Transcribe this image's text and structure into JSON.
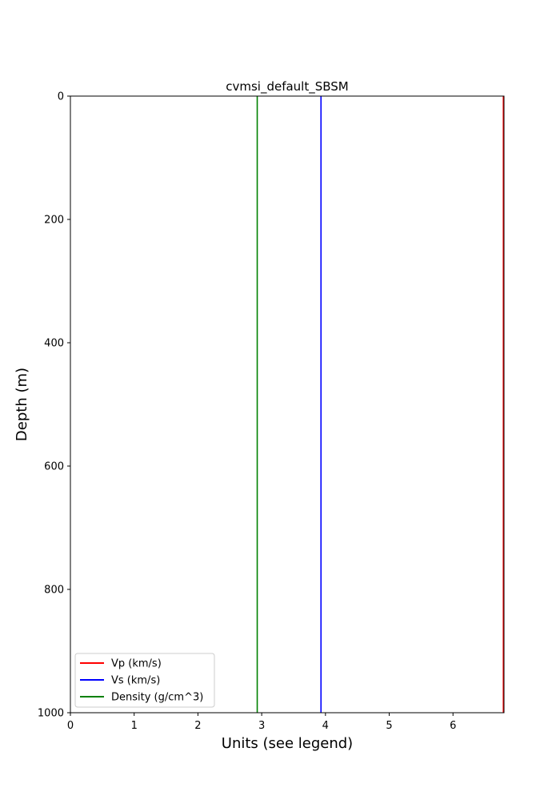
{
  "chart_data": {
    "type": "line",
    "title": "cvmsi_default_SBSM",
    "xlabel": "Units (see legend)",
    "ylabel": "Depth (m)",
    "xlim": [
      0,
      6.8
    ],
    "ylim": [
      1000,
      0
    ],
    "y_inverted": true,
    "x_ticks": [
      0,
      1,
      2,
      3,
      4,
      5,
      6
    ],
    "y_ticks": [
      0,
      200,
      400,
      600,
      800,
      1000
    ],
    "grid": false,
    "legend_position": "lower-left",
    "series": [
      {
        "name": "Vp (km/s)",
        "color": "#ff0000",
        "x": [
          6.79,
          6.79
        ],
        "y": [
          0,
          1000
        ]
      },
      {
        "name": "Vs (km/s)",
        "color": "#0000ff",
        "x": [
          3.93,
          3.93
        ],
        "y": [
          0,
          1000
        ]
      },
      {
        "name": "Density (g/cm^3)",
        "color": "#008000",
        "x": [
          2.93,
          2.93
        ],
        "y": [
          0,
          1000
        ]
      }
    ]
  }
}
